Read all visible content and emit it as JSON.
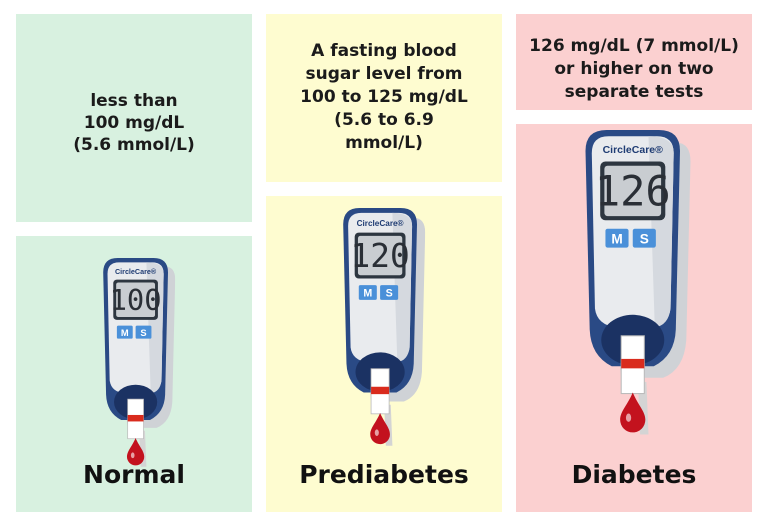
{
  "columns": [
    {
      "description": [
        "less than",
        "100 mg/dL",
        "(5.6 mmol/L)"
      ],
      "brand": "CircleCare®",
      "reading": "100",
      "buttons": [
        "M",
        "S"
      ],
      "label": "Normal"
    },
    {
      "description": [
        "A fasting blood",
        "sugar level from",
        "100 to 125 mg/dL",
        "(5.6 to 6.9",
        "mmol/L)"
      ],
      "brand": "CircleCare®",
      "reading": "120",
      "buttons": [
        "M",
        "S"
      ],
      "label": "Prediabetes"
    },
    {
      "description": [
        "126 mg/dL (7 mmol/L)",
        "or higher on two",
        "separate tests"
      ],
      "brand": "CircleCare®",
      "reading": "126",
      "buttons": [
        "M",
        "S"
      ],
      "label": "Diabetes"
    }
  ]
}
